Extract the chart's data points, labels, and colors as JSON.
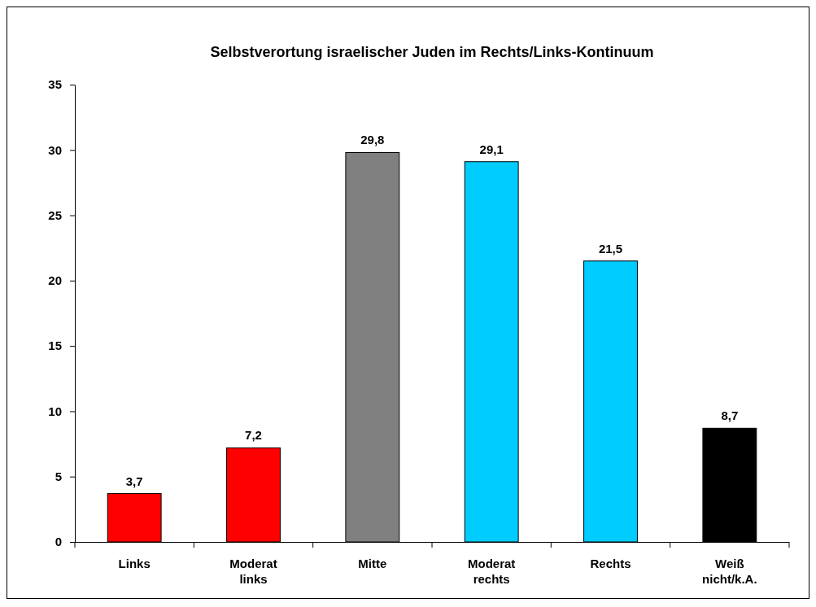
{
  "chart_data": {
    "type": "bar",
    "title": "Selbstverortung israelischer Juden im Rechts/Links-Kontinuum",
    "categories": [
      "Links",
      "Moderat links",
      "Mitte",
      "Moderat rechts",
      "Rechts",
      "Weiß nicht/k.A."
    ],
    "values": [
      3.7,
      7.2,
      29.8,
      29.1,
      21.5,
      8.7
    ],
    "colors": [
      "#ff0000",
      "#ff0000",
      "#808080",
      "#00ccff",
      "#00ccff",
      "#000000"
    ],
    "value_labels": [
      "3,7",
      "7,2",
      "29,8",
      "29,1",
      "21,5",
      "8,7"
    ],
    "ylim": [
      0,
      35
    ],
    "yticks": [
      0,
      5,
      10,
      15,
      20,
      25,
      30,
      35
    ]
  }
}
